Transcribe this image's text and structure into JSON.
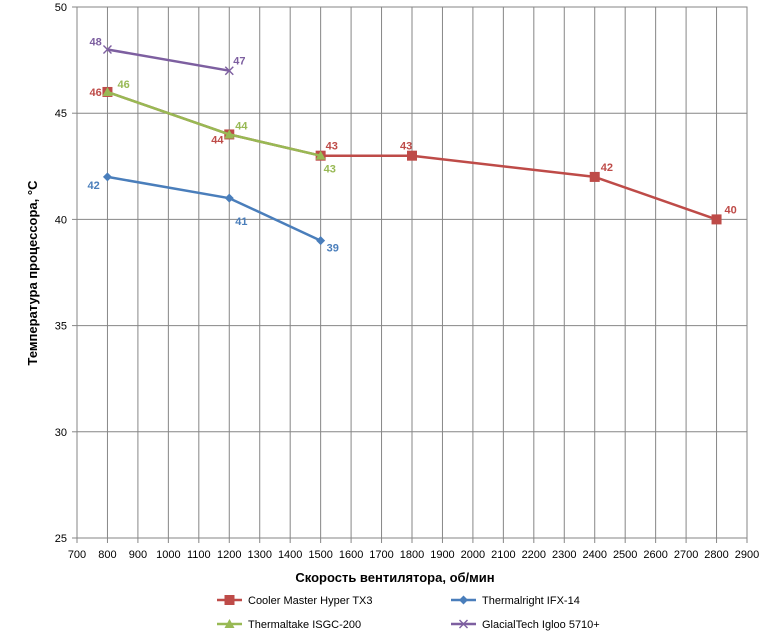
{
  "chart_data": {
    "type": "line",
    "title": "",
    "xlabel": "Скорость вентилятора, об/мин",
    "ylabel": "Температура процессора, °С",
    "xlim": [
      700,
      2900
    ],
    "ylim": [
      25,
      50
    ],
    "x_ticks": [
      "700",
      "800",
      "900",
      "1000",
      "1100",
      "1200",
      "1300",
      "1400",
      "1500",
      "1600",
      "1700",
      "1800",
      "1900",
      "2000",
      "2100",
      "2200",
      "2300",
      "2400",
      "2500",
      "2600",
      "2700",
      "2800",
      "2900"
    ],
    "y_ticks": [
      "25",
      "30",
      "35",
      "40",
      "45",
      "50"
    ],
    "grid": "vertical and horizontal major gridlines",
    "legend_position": "bottom",
    "series": [
      {
        "name": "Cooler Master Hyper TX3",
        "color": "#BE4B48",
        "marker": "square",
        "x": [
          800,
          1200,
          1500,
          1800,
          2400,
          2800
        ],
        "y": [
          46,
          44,
          43,
          43,
          42,
          40
        ],
        "labels": [
          "46",
          "44",
          "43",
          "43",
          "42",
          "40"
        ]
      },
      {
        "name": "Thermalright IFX-14",
        "color": "#4A7EBB",
        "marker": "diamond",
        "x": [
          800,
          1200,
          1500
        ],
        "y": [
          42,
          41,
          39
        ],
        "labels": [
          "42",
          "41",
          "39"
        ]
      },
      {
        "name": "Thermaltake ISGC-200",
        "color": "#98B954",
        "marker": "triangle",
        "x": [
          800,
          1200,
          1500
        ],
        "y": [
          46,
          44,
          43
        ],
        "labels": [
          "46",
          "44",
          "43"
        ]
      },
      {
        "name": "GlacialTech Igloo 5710+",
        "color": "#7D5FA0",
        "marker": "x",
        "x": [
          800,
          1200
        ],
        "y": [
          48,
          47
        ],
        "labels": [
          "48",
          "47"
        ]
      }
    ]
  }
}
